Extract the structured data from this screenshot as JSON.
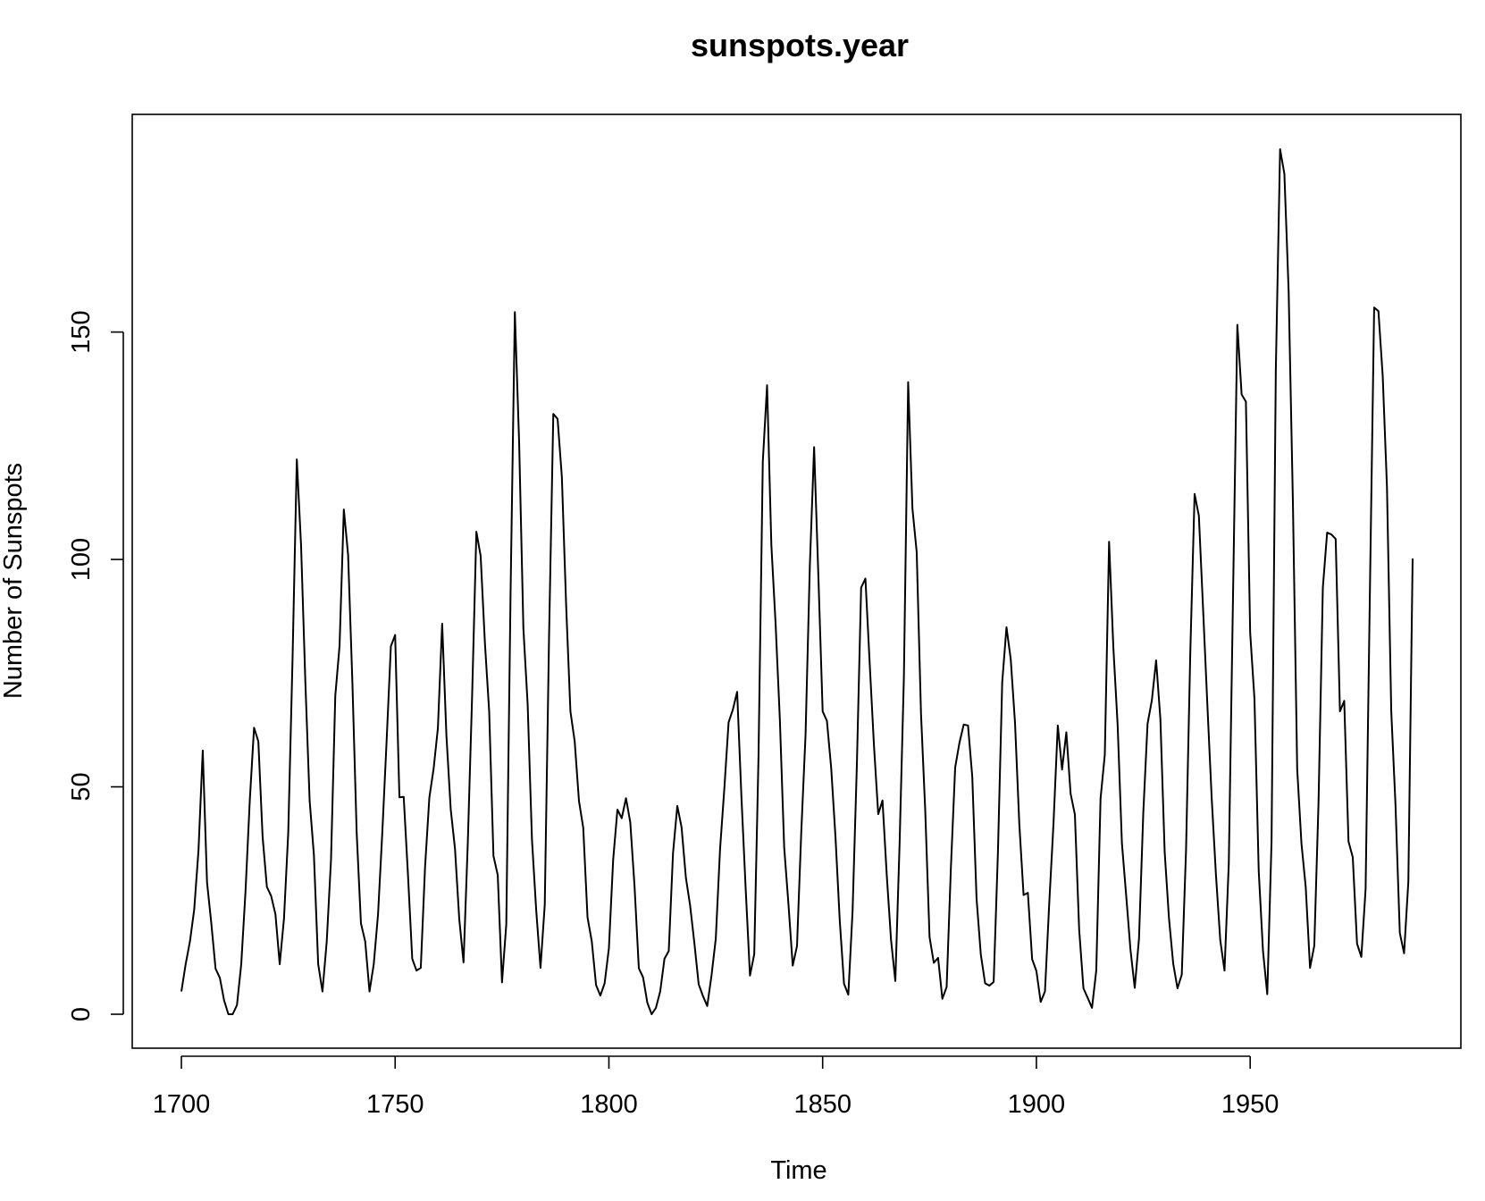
{
  "chart_data": {
    "type": "line",
    "title": "sunspots.year",
    "xlabel": "Time",
    "ylabel": "Number of Sunspots",
    "xlim": [
      1700,
      1988
    ],
    "ylim": [
      0,
      190.2
    ],
    "xticks": [
      1700,
      1750,
      1800,
      1850,
      1900,
      1950
    ],
    "yticks": [
      0,
      50,
      100,
      150
    ],
    "grid": false,
    "legend": "none",
    "line_color": "#000000",
    "series": [
      {
        "x_start": 1700,
        "x_step": 1,
        "values": [
          5.0,
          11.0,
          16.0,
          23.0,
          36.0,
          58.0,
          29.0,
          20.0,
          10.0,
          8.0,
          3.0,
          0.0,
          0.0,
          2.0,
          11.0,
          27.0,
          47.0,
          63.0,
          60.0,
          39.0,
          28.0,
          26.0,
          22.0,
          11.0,
          21.0,
          40.0,
          78.0,
          122.0,
          103.0,
          73.0,
          47.0,
          35.0,
          11.0,
          5.0,
          16.0,
          34.0,
          70.0,
          81.0,
          111.0,
          101.0,
          73.0,
          40.0,
          20.0,
          16.0,
          5.0,
          11.0,
          22.0,
          40.0,
          60.0,
          80.9,
          83.4,
          47.7,
          47.8,
          30.7,
          12.2,
          9.6,
          10.2,
          32.4,
          47.6,
          54.0,
          62.9,
          85.9,
          61.2,
          45.1,
          36.4,
          20.9,
          11.4,
          37.8,
          69.8,
          106.1,
          100.8,
          81.6,
          66.5,
          34.8,
          30.6,
          7.0,
          19.8,
          92.5,
          154.4,
          125.9,
          84.8,
          68.1,
          38.5,
          22.8,
          10.2,
          24.1,
          82.9,
          132.0,
          130.9,
          118.1,
          89.9,
          66.6,
          60.0,
          46.9,
          41.0,
          21.3,
          16.0,
          6.4,
          4.1,
          6.8,
          14.5,
          34.0,
          45.0,
          43.1,
          47.5,
          42.2,
          28.1,
          10.1,
          8.1,
          2.5,
          0.0,
          1.4,
          5.0,
          12.2,
          13.9,
          35.4,
          45.8,
          41.1,
          30.1,
          23.9,
          15.6,
          6.6,
          4.0,
          1.8,
          8.5,
          16.6,
          36.3,
          49.6,
          64.2,
          67.0,
          70.9,
          47.8,
          27.5,
          8.5,
          13.2,
          56.9,
          121.5,
          138.3,
          103.2,
          85.7,
          64.6,
          36.7,
          24.2,
          10.7,
          15.0,
          40.1,
          61.5,
          98.5,
          124.7,
          96.3,
          66.6,
          64.5,
          54.1,
          39.0,
          20.6,
          6.7,
          4.3,
          22.7,
          54.8,
          93.8,
          95.8,
          77.2,
          59.1,
          44.0,
          47.0,
          30.5,
          16.3,
          7.3,
          37.6,
          74.0,
          139.0,
          111.2,
          101.6,
          66.2,
          44.7,
          17.0,
          11.3,
          12.4,
          3.4,
          6.0,
          32.3,
          54.3,
          59.7,
          63.7,
          63.5,
          52.2,
          25.4,
          13.1,
          6.8,
          6.3,
          7.1,
          35.6,
          73.0,
          85.1,
          78.0,
          64.0,
          41.8,
          26.2,
          26.7,
          12.1,
          9.5,
          2.7,
          5.0,
          24.4,
          42.0,
          63.5,
          53.8,
          62.0,
          48.5,
          43.9,
          18.6,
          5.7,
          3.6,
          1.4,
          9.6,
          47.4,
          57.1,
          103.9,
          80.6,
          63.6,
          37.6,
          26.1,
          14.2,
          5.8,
          16.7,
          44.3,
          63.9,
          69.0,
          77.8,
          64.9,
          35.7,
          21.2,
          11.1,
          5.7,
          8.7,
          36.1,
          79.7,
          114.4,
          109.6,
          88.8,
          67.8,
          47.5,
          30.6,
          16.3,
          9.6,
          33.2,
          92.6,
          151.6,
          136.3,
          134.7,
          83.9,
          69.4,
          31.5,
          13.9,
          4.4,
          38.0,
          141.7,
          190.2,
          184.8,
          159.0,
          112.3,
          53.9,
          37.5,
          27.9,
          10.2,
          15.1,
          47.0,
          93.8,
          105.9,
          105.5,
          104.5,
          66.6,
          68.9,
          38.0,
          34.5,
          15.5,
          12.6,
          27.5,
          92.5,
          155.4,
          154.6,
          140.4,
          115.9,
          66.6,
          45.9,
          17.9,
          13.4,
          29.2,
          100.2
        ]
      }
    ]
  }
}
